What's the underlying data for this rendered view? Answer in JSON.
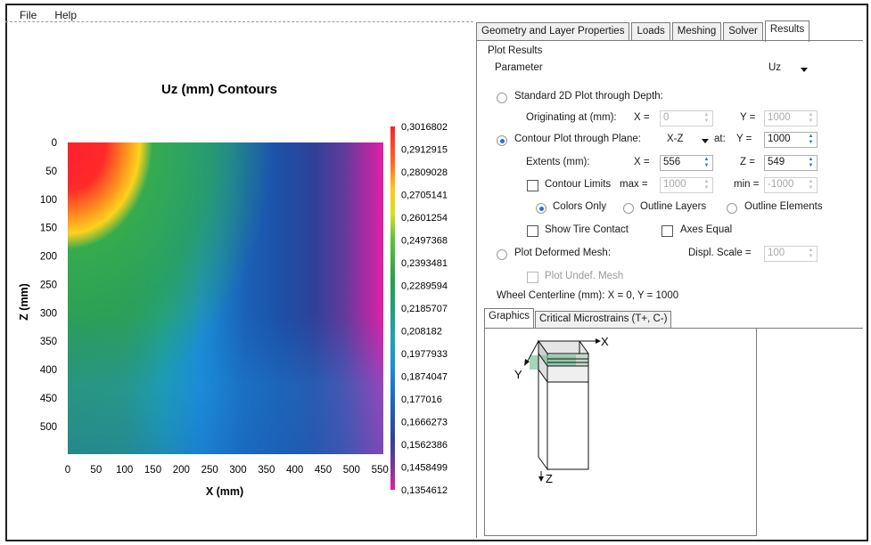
{
  "menu": {
    "file": "File",
    "help": "Help"
  },
  "chart_data": {
    "type": "heatmap",
    "title": "Uz (mm) Contours",
    "xlabel": "X (mm)",
    "ylabel": "Z (mm)",
    "xlim": [
      0,
      556
    ],
    "zlim": [
      0,
      549
    ],
    "x_ticks": [
      "0",
      "50",
      "100",
      "150",
      "200",
      "250",
      "300",
      "350",
      "400",
      "450",
      "500",
      "550"
    ],
    "z_ticks": [
      "0",
      "50",
      "100",
      "150",
      "200",
      "250",
      "300",
      "350",
      "400",
      "450",
      "500"
    ],
    "colorbar_labels": [
      "0,3016802",
      "0,2912915",
      "0,2809028",
      "0,2705141",
      "0,2601254",
      "0,2497368",
      "0,2393481",
      "0,2289594",
      "0,2185707",
      "0,208182",
      "0,1977933",
      "0,1874047",
      "0,177016",
      "0,1666273",
      "0,1562386",
      "0,1458499",
      "0,1354612"
    ],
    "colorbar_colors": [
      "#ff1f2d",
      "#ff6a1f",
      "#ffc51c",
      "#f7e620",
      "#9cd62a",
      "#3db54a",
      "#239a4a",
      "#1e9a64",
      "#1fa7a8",
      "#1b92d8",
      "#1a78d0",
      "#1a66bc",
      "#1a58a6",
      "#23439a",
      "#3b3e98",
      "#72379b",
      "#c02aa4",
      "#e01fa6"
    ]
  },
  "tabs": [
    "Geometry and Layer Properties",
    "Loads",
    "Meshing",
    "Solver",
    "Results"
  ],
  "results": {
    "plot_results": "Plot Results",
    "parameter_label": "Parameter",
    "parameter_value": "Uz",
    "standard_2d": "Standard 2D Plot through Depth:",
    "originating": "Originating at (mm):",
    "x_eq": "X =",
    "y_eq": "Y =",
    "z_eq": "Z =",
    "orig_x": "0",
    "orig_y": "1000",
    "contour_plot": "Contour Plot through Plane:",
    "plane": "X-Z",
    "at": "at:",
    "at_y": "1000",
    "extents": "Extents (mm):",
    "ext_x": "556",
    "ext_z": "549",
    "contour_limits": "Contour Limits",
    "max_eq": "max =",
    "min_eq": "min =",
    "limit_max": "1000",
    "limit_min": "-1000",
    "colors_only": "Colors Only",
    "outline_layers": "Outline Layers",
    "outline_elements": "Outline Elements",
    "show_tire": "Show Tire Contact",
    "axes_equal": "Axes Equal",
    "plot_deformed": "Plot Deformed Mesh:",
    "displ_scale": "Displ. Scale =",
    "displ_value": "100",
    "plot_undef": "Plot Undef. Mesh",
    "wheel_centerline": "Wheel Centerline (mm): X = 0, Y = 1000"
  },
  "subtabs": [
    "Graphics",
    "Critical Microstrains (T+, C-)"
  ],
  "graphic_axes": {
    "x": "X",
    "y": "Y",
    "z": "Z"
  }
}
